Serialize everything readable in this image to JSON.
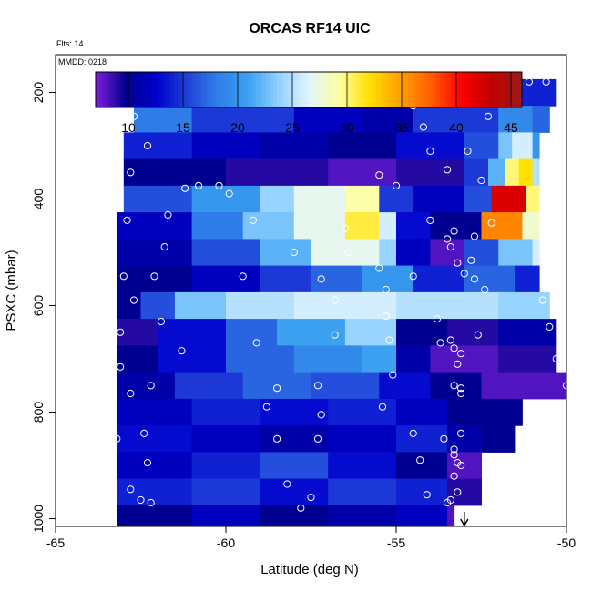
{
  "chart_data": {
    "type": "heatmap",
    "title": "ORCAS RF14 UIC",
    "annotations": {
      "flts": "Flts: 14",
      "mmdd": "MMDD: 0218"
    },
    "xlabel": "Latitude (deg N)",
    "ylabel": "PSXC (mbar)",
    "xlim": [
      -65,
      -50
    ],
    "ylim": [
      1000,
      100
    ],
    "x_ticks": [
      -65,
      -60,
      -55,
      -50
    ],
    "y_ticks": [
      200,
      400,
      600,
      800,
      1000
    ],
    "colorbar": {
      "min": 7,
      "max": 46,
      "ticks": [
        10,
        15,
        20,
        25,
        30,
        35,
        40,
        45
      ],
      "colors": [
        "#7f1fe0",
        "#00008b",
        "#0000cd",
        "#2040d8",
        "#2f7fe8",
        "#3aa0f0",
        "#90d0ff",
        "#e0f4ff",
        "#ffffa0",
        "#ffe000",
        "#ffa000",
        "#ff6000",
        "#ff0000",
        "#c00000",
        "#9b1b1b"
      ]
    },
    "rows": [
      {
        "p": 200,
        "segments": [
          [
            -62.7,
            -61,
            15
          ],
          [
            -61,
            -58,
            17
          ],
          [
            -58,
            -56,
            14
          ],
          [
            -56,
            -55,
            12
          ],
          [
            -55,
            -53,
            18
          ],
          [
            -53,
            -51.5,
            16
          ],
          [
            -51.5,
            -50.3,
            14
          ]
        ]
      },
      {
        "p": 250,
        "segments": [
          [
            -62.7,
            -61,
            18
          ],
          [
            -61,
            -58,
            15
          ],
          [
            -58,
            -56,
            12
          ],
          [
            -56,
            -54.5,
            11
          ],
          [
            -54.5,
            -52,
            15
          ],
          [
            -52,
            -51,
            19
          ],
          [
            -51,
            -50.5,
            17
          ]
        ]
      },
      {
        "p": 300,
        "segments": [
          [
            -63,
            -61,
            14
          ],
          [
            -61,
            -59,
            12
          ],
          [
            -59,
            -57,
            11
          ],
          [
            -57,
            -55,
            10
          ],
          [
            -55,
            -53,
            13
          ],
          [
            -53,
            -52,
            16
          ],
          [
            -52,
            -51.6,
            23
          ],
          [
            -51.6,
            -51,
            26
          ],
          [
            -51,
            -50.8,
            20
          ]
        ]
      },
      {
        "p": 350,
        "segments": [
          [
            -63,
            -60,
            10
          ],
          [
            -60,
            -57,
            9
          ],
          [
            -57,
            -55,
            8
          ],
          [
            -55,
            -53,
            9
          ],
          [
            -53,
            -52.3,
            15
          ],
          [
            -52.3,
            -51.8,
            22
          ],
          [
            -51.8,
            -51.4,
            30
          ],
          [
            -51.4,
            -51,
            32
          ],
          [
            -51,
            -50.8,
            25
          ]
        ]
      },
      {
        "p": 400,
        "segments": [
          [
            -63,
            -61,
            16
          ],
          [
            -61,
            -59,
            20
          ],
          [
            -59,
            -58,
            24
          ],
          [
            -58,
            -56.5,
            27
          ],
          [
            -56.5,
            -55.5,
            29
          ],
          [
            -55.5,
            -54.5,
            15
          ],
          [
            -54.5,
            -53,
            12
          ],
          [
            -53,
            -52.2,
            16
          ],
          [
            -52.2,
            -51.2,
            42
          ],
          [
            -51.2,
            -50.8,
            30
          ]
        ]
      },
      {
        "p": 450,
        "segments": [
          [
            -63.2,
            -61,
            12
          ],
          [
            -61,
            -59.5,
            18
          ],
          [
            -59.5,
            -58,
            23
          ],
          [
            -58,
            -56.5,
            27
          ],
          [
            -56.5,
            -55.5,
            31
          ],
          [
            -55.5,
            -55,
            26
          ],
          [
            -55,
            -54,
            13
          ],
          [
            -54,
            -52.5,
            10
          ],
          [
            -52.5,
            -51.3,
            36
          ],
          [
            -51.3,
            -50.8,
            28
          ]
        ]
      },
      {
        "p": 500,
        "segments": [
          [
            -63.2,
            -61,
            11
          ],
          [
            -61,
            -59,
            16
          ],
          [
            -59,
            -57.5,
            22
          ],
          [
            -57.5,
            -55.5,
            27
          ],
          [
            -55.5,
            -55,
            24
          ],
          [
            -55,
            -54,
            12
          ],
          [
            -54,
            -53,
            8
          ],
          [
            -53,
            -52,
            16
          ],
          [
            -52,
            -51,
            23
          ],
          [
            -51,
            -50.8,
            26
          ]
        ]
      },
      {
        "p": 550,
        "segments": [
          [
            -63.2,
            -61,
            10
          ],
          [
            -61,
            -59,
            12
          ],
          [
            -59,
            -57.5,
            15
          ],
          [
            -57.5,
            -56,
            17
          ],
          [
            -56,
            -54.5,
            20
          ],
          [
            -54.5,
            -53,
            14
          ],
          [
            -53,
            -51.5,
            17
          ],
          [
            -51.5,
            -50.8,
            14
          ]
        ]
      },
      {
        "p": 600,
        "segments": [
          [
            -63.2,
            -62.5,
            10
          ],
          [
            -62.5,
            -61.5,
            16
          ],
          [
            -61.5,
            -60,
            23
          ],
          [
            -60,
            -58,
            25
          ],
          [
            -58,
            -55,
            26
          ],
          [
            -55,
            -52,
            25
          ],
          [
            -52,
            -50.5,
            24
          ]
        ]
      },
      {
        "p": 650,
        "segments": [
          [
            -63.2,
            -62,
            9
          ],
          [
            -62,
            -60,
            13
          ],
          [
            -60,
            -58.5,
            17
          ],
          [
            -58.5,
            -56.5,
            21
          ],
          [
            -56.5,
            -55,
            24
          ],
          [
            -55,
            -53.5,
            10
          ],
          [
            -53.5,
            -52,
            9
          ],
          [
            -52,
            -50.3,
            11
          ]
        ]
      },
      {
        "p": 700,
        "segments": [
          [
            -63.2,
            -62,
            10
          ],
          [
            -62,
            -60,
            13
          ],
          [
            -60,
            -58,
            17
          ],
          [
            -58,
            -56,
            19
          ],
          [
            -56,
            -55,
            21
          ],
          [
            -55,
            -54,
            11
          ],
          [
            -54,
            -52,
            8
          ],
          [
            -52,
            -50.3,
            9
          ]
        ]
      },
      {
        "p": 750,
        "segments": [
          [
            -63.2,
            -61.5,
            11
          ],
          [
            -61.5,
            -59.5,
            15
          ],
          [
            -59.5,
            -57.5,
            17
          ],
          [
            -57.5,
            -55.5,
            16
          ],
          [
            -55.5,
            -54,
            13
          ],
          [
            -54,
            -52.5,
            10
          ],
          [
            -52.5,
            -50,
            8
          ]
        ]
      },
      {
        "p": 800,
        "segments": [
          [
            -63.2,
            -61,
            12
          ],
          [
            -61,
            -59,
            14
          ],
          [
            -59,
            -57,
            13
          ],
          [
            -57,
            -55,
            14
          ],
          [
            -55,
            -53.5,
            12
          ],
          [
            -53.5,
            -52.5,
            10
          ],
          [
            -52.5,
            -51.3,
            10
          ]
        ]
      },
      {
        "p": 850,
        "segments": [
          [
            -63.2,
            -61,
            13
          ],
          [
            -61,
            -59,
            12
          ],
          [
            -59,
            -57,
            11
          ],
          [
            -57,
            -55,
            12
          ],
          [
            -55,
            -53.5,
            14
          ],
          [
            -53.5,
            -52.5,
            11
          ],
          [
            -52.5,
            -51.5,
            10
          ]
        ]
      },
      {
        "p": 900,
        "segments": [
          [
            -63.2,
            -61,
            12
          ],
          [
            -61,
            -59,
            14
          ],
          [
            -59,
            -57,
            16
          ],
          [
            -57,
            -55,
            13
          ],
          [
            -55,
            -53.5,
            10
          ],
          [
            -53.5,
            -52.5,
            8
          ]
        ]
      },
      {
        "p": 950,
        "segments": [
          [
            -63.2,
            -61,
            14
          ],
          [
            -61,
            -59,
            15
          ],
          [
            -59,
            -57,
            13
          ],
          [
            -57,
            -55,
            15
          ],
          [
            -55,
            -53.5,
            14
          ],
          [
            -53.5,
            -52.5,
            9
          ]
        ]
      },
      {
        "p": 1000,
        "segments": [
          [
            -63.2,
            -61,
            10
          ],
          [
            -61,
            -59,
            12
          ],
          [
            -59,
            -57,
            10
          ],
          [
            -57,
            -55,
            11
          ],
          [
            -55,
            -53.5,
            12
          ],
          [
            -53.5,
            -53.3,
            8
          ]
        ]
      }
    ],
    "points": [
      [
        -62.2,
        180
      ],
      [
        -61.6,
        180
      ],
      [
        -61,
        180
      ],
      [
        -60.5,
        180
      ],
      [
        -60,
        180
      ],
      [
        -59.4,
        180
      ],
      [
        -58.8,
        180
      ],
      [
        -58.3,
        180
      ],
      [
        -57.8,
        180
      ],
      [
        -57.3,
        180
      ],
      [
        -56.8,
        180
      ],
      [
        -56.4,
        180
      ],
      [
        -56,
        180
      ],
      [
        -55.6,
        180
      ],
      [
        -55.2,
        180
      ],
      [
        -54.6,
        180
      ],
      [
        -52,
        180
      ],
      [
        -51.6,
        180
      ],
      [
        -51.1,
        180
      ],
      [
        -50.6,
        180
      ],
      [
        -50.1,
        180
      ],
      [
        -62.5,
        195
      ],
      [
        -54.8,
        195
      ],
      [
        -51.9,
        190
      ],
      [
        -62.7,
        245
      ],
      [
        -54.5,
        225
      ],
      [
        -52.3,
        245
      ],
      [
        -62.3,
        300
      ],
      [
        -54.2,
        265
      ],
      [
        -54,
        310
      ],
      [
        -52.9,
        310
      ],
      [
        -62.8,
        350
      ],
      [
        -55.5,
        355
      ],
      [
        -53.5,
        345
      ],
      [
        -61.2,
        380
      ],
      [
        -60.8,
        375
      ],
      [
        -60.2,
        375
      ],
      [
        -59.9,
        390
      ],
      [
        -55,
        375
      ],
      [
        -52.5,
        365
      ],
      [
        -61.7,
        430
      ],
      [
        -59.2,
        440
      ],
      [
        -54,
        440
      ],
      [
        -52.2,
        445
      ],
      [
        -62.9,
        440
      ],
      [
        -56.5,
        455
      ],
      [
        -53.5,
        475
      ],
      [
        -53.3,
        460
      ],
      [
        -52.7,
        470
      ],
      [
        -61.8,
        490
      ],
      [
        -58,
        500
      ],
      [
        -53.4,
        490
      ],
      [
        -52.8,
        515
      ],
      [
        -56.4,
        500
      ],
      [
        -63,
        545
      ],
      [
        -62.1,
        545
      ],
      [
        -59.5,
        545
      ],
      [
        -55.5,
        530
      ],
      [
        -54.5,
        545
      ],
      [
        -53,
        540
      ],
      [
        -52.7,
        550
      ],
      [
        -53.2,
        520
      ],
      [
        -52.4,
        570
      ],
      [
        -57.2,
        550
      ],
      [
        -55.3,
        570
      ],
      [
        -50.7,
        590
      ],
      [
        -62.7,
        590
      ],
      [
        -56.8,
        590
      ],
      [
        -55.3,
        620
      ],
      [
        -53.8,
        625
      ],
      [
        -61.9,
        630
      ],
      [
        -56.8,
        655
      ],
      [
        -53.7,
        670
      ],
      [
        -53.4,
        665
      ],
      [
        -52.6,
        655
      ],
      [
        -50.5,
        640
      ],
      [
        -63.1,
        650
      ],
      [
        -59.1,
        670
      ],
      [
        -55.2,
        665
      ],
      [
        -53.3,
        680
      ],
      [
        -61.3,
        685
      ],
      [
        -53.1,
        690
      ],
      [
        -50.3,
        700
      ],
      [
        -53.2,
        710
      ],
      [
        -63.1,
        715
      ],
      [
        -55.1,
        730
      ],
      [
        -53.3,
        750
      ],
      [
        -53.1,
        755
      ],
      [
        -50,
        750
      ],
      [
        -62.8,
        765
      ],
      [
        -62.2,
        750
      ],
      [
        -58.5,
        755
      ],
      [
        -57.3,
        750
      ],
      [
        -53.1,
        765
      ],
      [
        -57.2,
        805
      ],
      [
        -58.8,
        790
      ],
      [
        -55.4,
        790
      ],
      [
        -62.4,
        840
      ],
      [
        -58.5,
        850
      ],
      [
        -57.3,
        850
      ],
      [
        -54.5,
        840
      ],
      [
        -53.6,
        850
      ],
      [
        -53.1,
        840
      ],
      [
        -53.3,
        870
      ],
      [
        -63.2,
        850
      ],
      [
        -53.3,
        880
      ],
      [
        -53.2,
        895
      ],
      [
        -62.3,
        895
      ],
      [
        -54.3,
        890
      ],
      [
        -53.1,
        900
      ],
      [
        -53.3,
        920
      ],
      [
        -62.8,
        945
      ],
      [
        -58.2,
        935
      ],
      [
        -57.5,
        960
      ],
      [
        -54.1,
        955
      ],
      [
        -53.2,
        950
      ],
      [
        -53.4,
        965
      ],
      [
        -62.5,
        965
      ],
      [
        -62.2,
        970
      ],
      [
        -57.8,
        980
      ],
      [
        -53.5,
        970
      ]
    ],
    "marker": {
      "x": -53,
      "p": 990
    }
  }
}
